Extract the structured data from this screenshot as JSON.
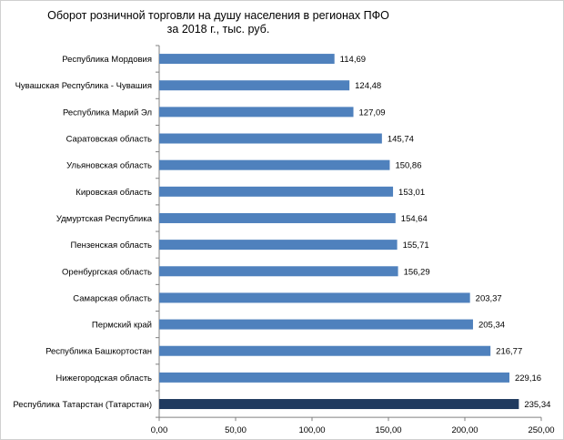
{
  "chart_data": {
    "type": "bar",
    "orientation": "horizontal",
    "title": "Оборот розничной  торговли на душу  населения  в регионах  ПФО",
    "subtitle": "за 2018 г., тыс. руб.",
    "categories": [
      "Республика Мордовия",
      "Чувашская Республика - Чувашия",
      "Республика Марий Эл",
      "Саратовская область",
      "Ульяновская область",
      "Кировская область",
      "Удмуртская Республика",
      "Пензенская область",
      "Оренбургская область",
      "Самарская область",
      "Пермский край",
      "Республика Башкортостан",
      "Нижегородская область",
      "Республика Татарстан (Татарстан)"
    ],
    "values": [
      114.69,
      124.48,
      127.09,
      145.74,
      150.86,
      153.01,
      154.64,
      155.71,
      156.29,
      203.37,
      205.34,
      216.77,
      229.16,
      235.34
    ],
    "data_labels": [
      "114,69",
      "124,48",
      "127,09",
      "145,74",
      "150,86",
      "153,01",
      "154,64",
      "155,71",
      "156,29",
      "203,37",
      "205,34",
      "216,77",
      "229,16",
      "235,34"
    ],
    "xlim": [
      0,
      250
    ],
    "x_ticks": [
      "0,00",
      "50,00",
      "100,00",
      "150,00",
      "200,00",
      "250,00"
    ],
    "x_tick_values": [
      0,
      50,
      100,
      150,
      200,
      250
    ],
    "grid": false,
    "legend": "none",
    "colors": {
      "bar": "#4f81bd",
      "highlight_bar": "#1f3a5f",
      "axis": "#808080"
    },
    "highlight_index": 13
  }
}
